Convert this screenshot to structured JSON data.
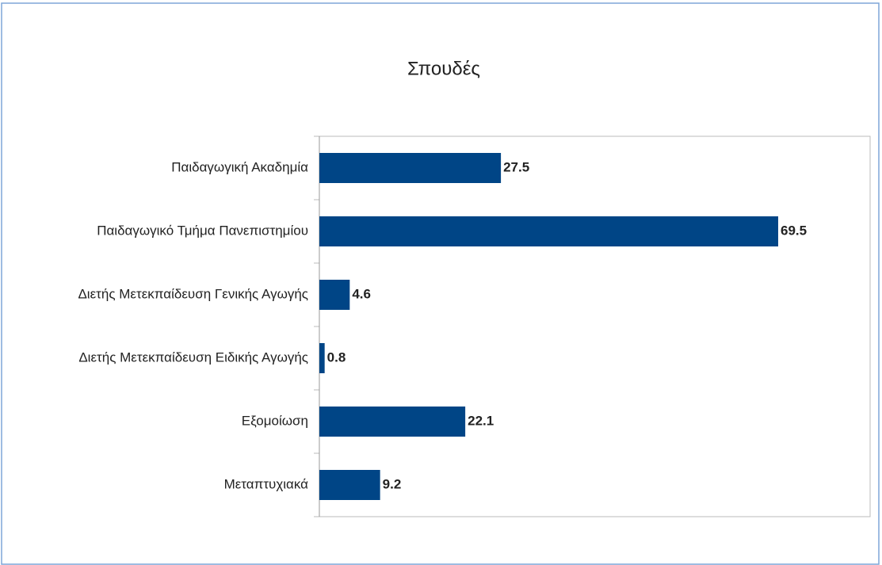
{
  "chart_data": {
    "type": "bar",
    "orientation": "horizontal",
    "title": "Σπουδές",
    "categories": [
      "Παιδαγωγική Ακαδημία",
      "Παιδαγωγικό Τμήμα Πανεπιστημίου",
      "Διετής Μετεκπαίδευση Γενικής Αγωγής",
      "Διετής Μετεκπαίδευση Ειδικής Αγωγής",
      "Εξομοίωση",
      "Μεταπτυχιακά"
    ],
    "values": [
      27.5,
      69.5,
      4.6,
      0.8,
      22.1,
      9.2
    ],
    "color": "#004586"
  }
}
